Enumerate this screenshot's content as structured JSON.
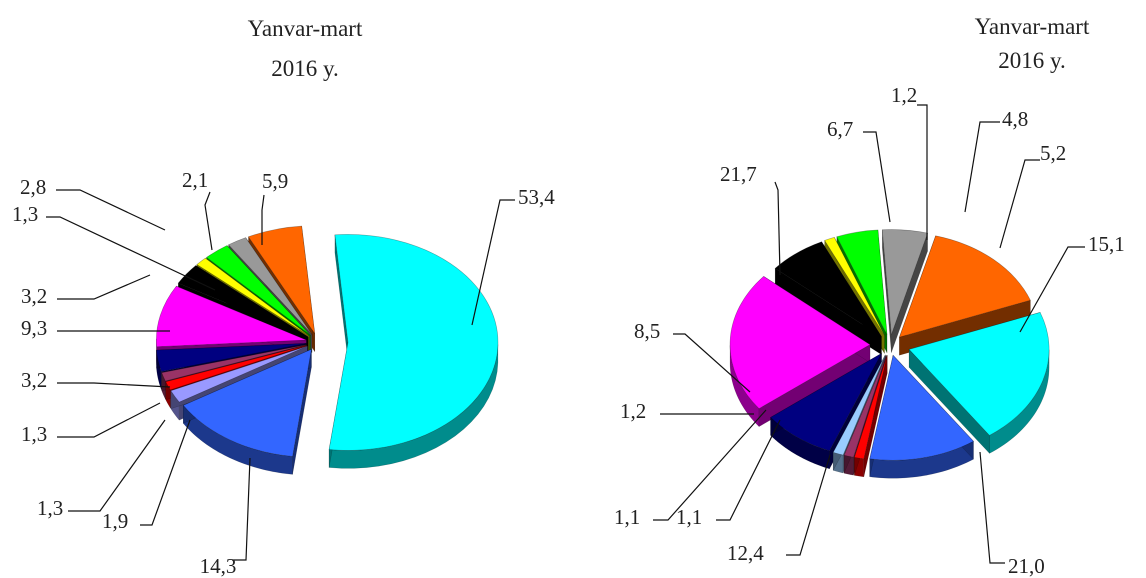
{
  "chart_data": [
    {
      "type": "pie",
      "title_line1": "Yanvar-mart",
      "title_line2": "2016 y.",
      "slices": [
        {
          "label": "53,4",
          "value": 53.4,
          "color": "#00FFFF"
        },
        {
          "label": "14,3",
          "value": 14.3,
          "color": "#3366FF"
        },
        {
          "label": "1,9",
          "value": 1.9,
          "color": "#9999FF"
        },
        {
          "label": "1,3",
          "value": 1.3,
          "color": "#FF0000"
        },
        {
          "label": "1,3",
          "value": 1.3,
          "color": "#993366"
        },
        {
          "label": "3,2",
          "value": 3.2,
          "color": "#000080"
        },
        {
          "label": "9,3",
          "value": 9.3,
          "color": "#FF00FF"
        },
        {
          "label": "3,2",
          "value": 3.2,
          "color": "#000000"
        },
        {
          "label": "1,3",
          "value": 1.3,
          "color": "#FFFF00"
        },
        {
          "label": "2,8",
          "value": 2.8,
          "color": "#00FF00"
        },
        {
          "label": "2,1",
          "value": 2.1,
          "color": "#999999"
        },
        {
          "label": "5,9",
          "value": 5.9,
          "color": "#FF6600"
        }
      ]
    },
    {
      "type": "pie",
      "title_line1": "Yanvar-mart",
      "title_line2": "2016 y.",
      "slices": [
        {
          "label": "15,1",
          "value": 15.1,
          "color": "#FF6600"
        },
        {
          "label": "21,0",
          "value": 21.0,
          "color": "#00FFFF"
        },
        {
          "label": "12,4",
          "value": 12.4,
          "color": "#3366FF"
        },
        {
          "label": "1,1",
          "value": 1.1,
          "color": "#FF0000"
        },
        {
          "label": "1,1",
          "value": 1.1,
          "color": "#993366"
        },
        {
          "label": "1,2",
          "value": 1.2,
          "color": "#99CCFF"
        },
        {
          "label": "8,5",
          "value": 8.5,
          "color": "#000080"
        },
        {
          "label": "21,7",
          "value": 21.7,
          "color": "#FF00FF"
        },
        {
          "label": "6,7",
          "value": 6.7,
          "color": "#000000"
        },
        {
          "label": "1,2",
          "value": 1.2,
          "color": "#FFFF00"
        },
        {
          "label": "4,8",
          "value": 4.8,
          "color": "#00FF00"
        },
        {
          "label": "5,2",
          "value": 5.2,
          "color": "#999999"
        }
      ]
    }
  ]
}
